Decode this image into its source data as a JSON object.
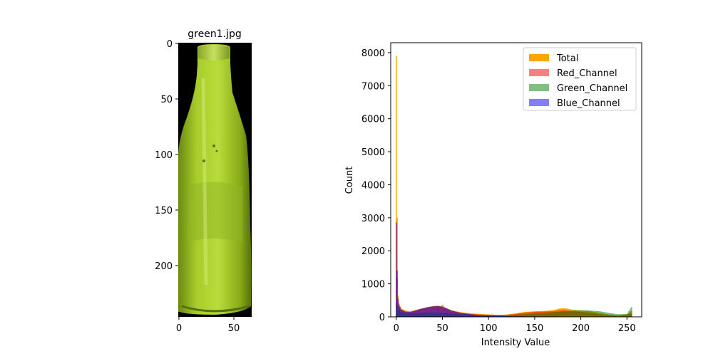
{
  "figure": {
    "image_panel": {
      "title": "green1.jpg",
      "x_ticks": [
        "0",
        "50"
      ],
      "y_ticks": [
        "0",
        "50",
        "100",
        "150",
        "200"
      ]
    }
  },
  "chart_data": {
    "type": "bar",
    "title": "",
    "xlabel": "Intensity Value",
    "ylabel": "Count",
    "xlim": [
      -6,
      266
    ],
    "ylim": [
      0,
      8300
    ],
    "x_ticks": [
      0,
      50,
      100,
      150,
      200,
      250
    ],
    "y_ticks": [
      0,
      1000,
      2000,
      3000,
      4000,
      5000,
      6000,
      7000,
      8000
    ],
    "legend_position": "top-right",
    "series": [
      {
        "name": "Total",
        "color": "#ffa500",
        "opacity": 1.0,
        "points": [
          [
            0,
            7900
          ],
          [
            1,
            3000
          ],
          [
            2,
            650
          ],
          [
            3,
            420
          ],
          [
            4,
            330
          ],
          [
            6,
            240
          ],
          [
            10,
            190
          ],
          [
            15,
            170
          ],
          [
            20,
            200
          ],
          [
            25,
            240
          ],
          [
            30,
            270
          ],
          [
            35,
            300
          ],
          [
            40,
            330
          ],
          [
            45,
            340
          ],
          [
            48,
            320
          ],
          [
            50,
            370
          ],
          [
            52,
            300
          ],
          [
            55,
            260
          ],
          [
            60,
            200
          ],
          [
            70,
            140
          ],
          [
            80,
            110
          ],
          [
            90,
            90
          ],
          [
            100,
            75
          ],
          [
            110,
            60
          ],
          [
            120,
            70
          ],
          [
            130,
            110
          ],
          [
            140,
            150
          ],
          [
            150,
            170
          ],
          [
            160,
            180
          ],
          [
            170,
            200
          ],
          [
            175,
            240
          ],
          [
            180,
            260
          ],
          [
            185,
            250
          ],
          [
            190,
            220
          ],
          [
            200,
            190
          ],
          [
            210,
            170
          ],
          [
            220,
            120
          ],
          [
            230,
            70
          ],
          [
            240,
            40
          ],
          [
            250,
            50
          ],
          [
            255,
            180
          ]
        ]
      },
      {
        "name": "Red_Channel",
        "color": "#ff0000",
        "opacity": 0.5,
        "points": [
          [
            0,
            2850
          ],
          [
            1,
            1200
          ],
          [
            2,
            500
          ],
          [
            3,
            350
          ],
          [
            5,
            220
          ],
          [
            10,
            150
          ],
          [
            15,
            140
          ],
          [
            20,
            180
          ],
          [
            25,
            220
          ],
          [
            30,
            260
          ],
          [
            35,
            290
          ],
          [
            40,
            310
          ],
          [
            45,
            320
          ],
          [
            50,
            300
          ],
          [
            55,
            240
          ],
          [
            60,
            180
          ],
          [
            70,
            120
          ],
          [
            80,
            90
          ],
          [
            90,
            70
          ],
          [
            100,
            60
          ],
          [
            110,
            55
          ],
          [
            120,
            60
          ],
          [
            130,
            90
          ],
          [
            140,
            130
          ],
          [
            150,
            150
          ],
          [
            160,
            160
          ],
          [
            170,
            170
          ],
          [
            180,
            200
          ],
          [
            190,
            180
          ],
          [
            200,
            150
          ],
          [
            210,
            120
          ],
          [
            220,
            80
          ],
          [
            230,
            50
          ],
          [
            240,
            30
          ],
          [
            255,
            100
          ]
        ]
      },
      {
        "name": "Green_Channel",
        "color": "#008000",
        "opacity": 0.5,
        "points": [
          [
            0,
            400
          ],
          [
            2,
            250
          ],
          [
            5,
            150
          ],
          [
            10,
            100
          ],
          [
            20,
            110
          ],
          [
            30,
            120
          ],
          [
            40,
            130
          ],
          [
            50,
            120
          ],
          [
            60,
            100
          ],
          [
            80,
            70
          ],
          [
            100,
            50
          ],
          [
            120,
            50
          ],
          [
            140,
            80
          ],
          [
            160,
            120
          ],
          [
            180,
            160
          ],
          [
            190,
            190
          ],
          [
            200,
            200
          ],
          [
            210,
            190
          ],
          [
            220,
            170
          ],
          [
            230,
            120
          ],
          [
            240,
            80
          ],
          [
            250,
            90
          ],
          [
            255,
            300
          ]
        ]
      },
      {
        "name": "Blue_Channel",
        "color": "#0000ff",
        "opacity": 0.5,
        "points": [
          [
            0,
            2850
          ],
          [
            1,
            1400
          ],
          [
            2,
            560
          ],
          [
            3,
            370
          ],
          [
            5,
            230
          ],
          [
            10,
            160
          ],
          [
            15,
            150
          ],
          [
            20,
            190
          ],
          [
            25,
            230
          ],
          [
            30,
            270
          ],
          [
            35,
            300
          ],
          [
            40,
            320
          ],
          [
            45,
            330
          ],
          [
            50,
            310
          ],
          [
            55,
            250
          ],
          [
            60,
            190
          ],
          [
            70,
            120
          ],
          [
            80,
            80
          ],
          [
            90,
            50
          ],
          [
            100,
            35
          ],
          [
            120,
            20
          ],
          [
            140,
            15
          ],
          [
            160,
            12
          ],
          [
            180,
            10
          ],
          [
            200,
            8
          ],
          [
            255,
            5
          ]
        ]
      }
    ]
  }
}
